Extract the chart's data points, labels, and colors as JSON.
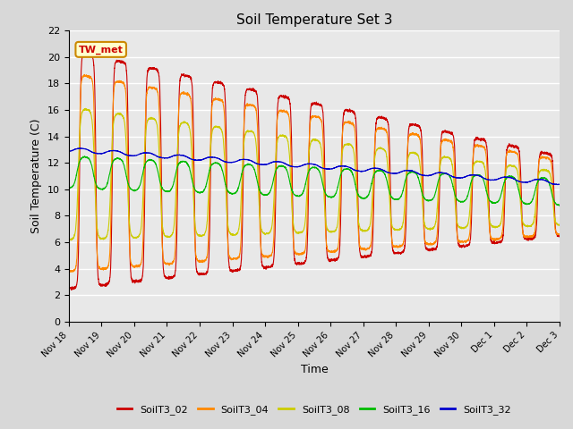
{
  "title": "Soil Temperature Set 3",
  "xlabel": "Time",
  "ylabel": "Soil Temperature (C)",
  "ylim": [
    0,
    22
  ],
  "yticks": [
    0,
    2,
    4,
    6,
    8,
    10,
    12,
    14,
    16,
    18,
    20,
    22
  ],
  "annotation_text": "TW_met",
  "annotation_color": "#cc0000",
  "annotation_bg": "#ffffcc",
  "annotation_border": "#cc8800",
  "series_colors": {
    "SoilT3_02": "#cc0000",
    "SoilT3_04": "#ff8800",
    "SoilT3_08": "#cccc00",
    "SoilT3_16": "#00bb00",
    "SoilT3_32": "#0000cc"
  },
  "background_color": "#e8e8e8",
  "grid_color": "#ffffff",
  "figsize": [
    6.4,
    4.8
  ],
  "dpi": 100,
  "num_points": 3600,
  "num_days": 15,
  "tick_labels": [
    "Nov 18",
    "Nov 19",
    "Nov 20",
    "Nov 21",
    "Nov 22",
    "Nov 23",
    "Nov 24",
    "Nov 25",
    "Nov 26",
    "Nov 27",
    "Nov 28",
    "Nov 29",
    "Nov 30",
    "Dec 1",
    "Dec 2",
    "Dec 3"
  ]
}
